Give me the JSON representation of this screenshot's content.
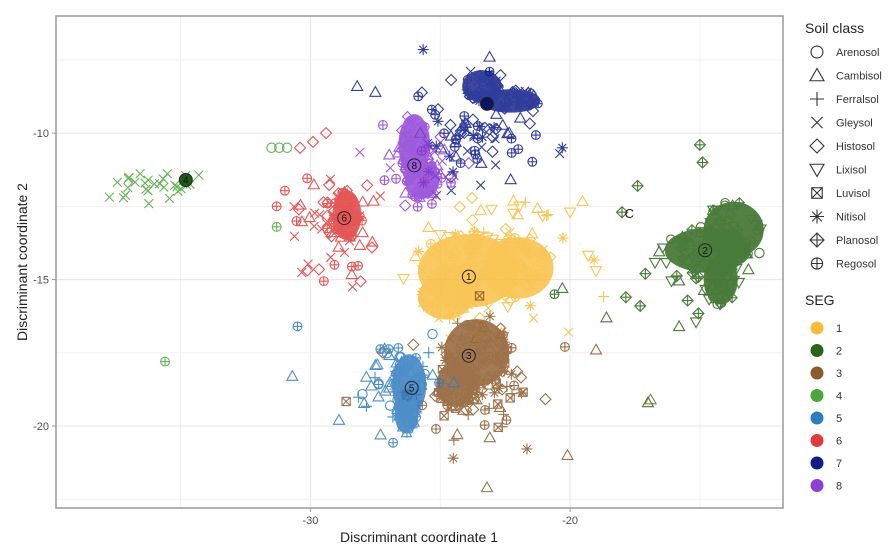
{
  "chart_data": {
    "type": "scatter",
    "title": "",
    "xlabel": "Discriminant coordinate 1",
    "ylabel": "Discriminant coordinate 2",
    "xlim": [
      -39.8,
      -11.8
    ],
    "ylim": [
      -22.8,
      -6.0
    ],
    "xticks": [
      -30,
      -20
    ],
    "xtick_labels": [
      "-30",
      "-20"
    ],
    "x_minor_gridlines": [
      -35,
      -25,
      -15
    ],
    "yticks": [
      -10,
      -15,
      -20
    ],
    "ytick_labels": [
      "-10",
      "-15",
      "-20"
    ],
    "y_minor_gridlines": [
      -7.5,
      -12.5,
      -17.5,
      -22.5
    ],
    "grid": true,
    "annotation": {
      "text": "C",
      "x": -17.9,
      "y": -12.9
    },
    "legend_shape": {
      "title": "Soil class",
      "position": "right",
      "entries": [
        {
          "name": "Arenosol",
          "shape": "circle"
        },
        {
          "name": "Cambisol",
          "shape": "triangle-up"
        },
        {
          "name": "Ferralsol",
          "shape": "plus"
        },
        {
          "name": "Gleysol",
          "shape": "cross"
        },
        {
          "name": "Histosol",
          "shape": "diamond"
        },
        {
          "name": "Lixisol",
          "shape": "triangle-down"
        },
        {
          "name": "Luvisol",
          "shape": "square-cross"
        },
        {
          "name": "Nitisol",
          "shape": "asterisk"
        },
        {
          "name": "Planosol",
          "shape": "diamond-plus"
        },
        {
          "name": "Regosol",
          "shape": "circle-plus"
        }
      ]
    },
    "legend_color": {
      "title": "SEG",
      "position": "right",
      "entries": [
        {
          "name": "1",
          "color": "#F9BC3A"
        },
        {
          "name": "2",
          "color": "#2A6418"
        },
        {
          "name": "3",
          "color": "#8C5A2B"
        },
        {
          "name": "4",
          "color": "#4DA63A"
        },
        {
          "name": "5",
          "color": "#2F7BC0"
        },
        {
          "name": "6",
          "color": "#E03A3A"
        },
        {
          "name": "7",
          "color": "#0E1C8A"
        },
        {
          "name": "8",
          "color": "#8E3FD6"
        }
      ]
    },
    "centroids": [
      {
        "seg": "1",
        "x": -23.9,
        "y": -14.9
      },
      {
        "seg": "2",
        "x": -14.8,
        "y": -14.0
      },
      {
        "seg": "3",
        "x": -23.9,
        "y": -17.6
      },
      {
        "seg": "4",
        "x": -34.8,
        "y": -11.6
      },
      {
        "seg": "5",
        "x": -26.1,
        "y": -18.7
      },
      {
        "seg": "6",
        "x": -28.7,
        "y": -12.9
      },
      {
        "seg": "7",
        "x": -23.2,
        "y": -9.0
      },
      {
        "seg": "8",
        "x": -26.0,
        "y": -11.1
      }
    ],
    "clusters": [
      {
        "seg": "1",
        "dense": [
          {
            "x": -23.9,
            "y": -14.7,
            "rx": 1.9,
            "ry": 1.2
          },
          {
            "x": -22.0,
            "y": -14.6,
            "rx": 1.3,
            "ry": 1.0
          },
          {
            "x": -24.8,
            "y": -15.6,
            "rx": 1.0,
            "ry": 0.7
          }
        ],
        "scatter": {
          "cx": -23.2,
          "cy": -14.4,
          "sx": 2.6,
          "sy": 1.8,
          "n": 120,
          "shapes": [
            "diamond",
            "triangle-down",
            "triangle-up",
            "circle-plus",
            "asterisk",
            "plus",
            "cross"
          ]
        }
      },
      {
        "seg": "2",
        "dense": [
          {
            "x": -14.7,
            "y": -14.0,
            "rx": 1.6,
            "ry": 0.7
          },
          {
            "x": -13.7,
            "y": -13.3,
            "rx": 1.1,
            "ry": 0.9
          },
          {
            "x": -14.2,
            "y": -15.0,
            "rx": 0.6,
            "ry": 0.8
          }
        ],
        "scatter": {
          "cx": -14.8,
          "cy": -14.4,
          "sx": 1.5,
          "sy": 1.3,
          "n": 60,
          "shapes": [
            "diamond-plus",
            "triangle-down",
            "circle",
            "triangle-up"
          ]
        }
      },
      {
        "seg": "3",
        "dense": [
          {
            "x": -23.6,
            "y": -17.5,
            "rx": 1.2,
            "ry": 1.1
          },
          {
            "x": -24.4,
            "y": -18.6,
            "rx": 0.7,
            "ry": 0.7
          }
        ],
        "scatter": {
          "cx": -23.8,
          "cy": -18.4,
          "sx": 2.0,
          "sy": 1.5,
          "n": 110,
          "shapes": [
            "diamond",
            "triangle-up",
            "asterisk",
            "circle-plus",
            "square-cross",
            "plus"
          ]
        }
      },
      {
        "seg": "4",
        "dense": [],
        "scatter": {
          "cx": -36.0,
          "cy": -11.9,
          "sx": 1.7,
          "sy": 0.5,
          "n": 28,
          "shapes": [
            "cross"
          ]
        }
      },
      {
        "seg": "5",
        "dense": [
          {
            "x": -26.2,
            "y": -18.6,
            "rx": 0.6,
            "ry": 1.0
          },
          {
            "x": -26.3,
            "y": -19.6,
            "rx": 0.4,
            "ry": 0.6
          }
        ],
        "scatter": {
          "cx": -26.8,
          "cy": -18.3,
          "sx": 1.4,
          "sy": 1.3,
          "n": 55,
          "shapes": [
            "plus",
            "circle",
            "triangle-up",
            "circle-plus"
          ]
        }
      },
      {
        "seg": "6",
        "dense": [
          {
            "x": -28.6,
            "y": -12.8,
            "rx": 0.5,
            "ry": 0.8
          }
        ],
        "scatter": {
          "cx": -29.1,
          "cy": -13.2,
          "sx": 1.4,
          "sy": 1.7,
          "n": 70,
          "shapes": [
            "diamond",
            "triangle-up",
            "circle-plus",
            "cross"
          ]
        }
      },
      {
        "seg": "7",
        "dense": [
          {
            "x": -23.4,
            "y": -8.4,
            "rx": 0.7,
            "ry": 0.5
          },
          {
            "x": -22.3,
            "y": -8.9,
            "rx": 1.1,
            "ry": 0.35
          }
        ],
        "scatter": {
          "cx": -23.9,
          "cy": -10.1,
          "sx": 1.9,
          "sy": 1.4,
          "n": 80,
          "shapes": [
            "diamond",
            "asterisk",
            "cross",
            "circle-plus",
            "triangle-up"
          ]
        }
      },
      {
        "seg": "8",
        "dense": [
          {
            "x": -26.0,
            "y": -10.4,
            "rx": 0.55,
            "ry": 1.0
          },
          {
            "x": -25.7,
            "y": -11.6,
            "rx": 0.6,
            "ry": 0.6
          }
        ],
        "scatter": {
          "cx": -25.7,
          "cy": -11.2,
          "sx": 1.2,
          "sy": 1.0,
          "n": 60,
          "shapes": [
            "circle-plus",
            "triangle-up",
            "diamond",
            "cross"
          ]
        }
      }
    ],
    "extra_points": [
      {
        "seg": "4",
        "shape": "circle-plus",
        "x": -35.6,
        "y": -17.8
      },
      {
        "seg": "4",
        "shape": "circle-plus",
        "x": -31.3,
        "y": -13.2
      },
      {
        "seg": "4",
        "shape": "circle",
        "x": -31.5,
        "y": -10.5
      },
      {
        "seg": "4",
        "shape": "circle",
        "x": -31.2,
        "y": -10.5
      },
      {
        "seg": "4",
        "shape": "circle",
        "x": -30.9,
        "y": -10.5
      },
      {
        "seg": "6",
        "shape": "circle-plus",
        "x": -31.3,
        "y": -12.5
      },
      {
        "seg": "6",
        "shape": "diamond",
        "x": -30.4,
        "y": -10.5
      },
      {
        "seg": "6",
        "shape": "diamond",
        "x": -29.9,
        "y": -10.3
      },
      {
        "seg": "6",
        "shape": "diamond",
        "x": -29.4,
        "y": -10.0
      },
      {
        "seg": "5",
        "shape": "circle-plus",
        "x": -30.5,
        "y": -16.6
      },
      {
        "seg": "5",
        "shape": "triangle-up",
        "x": -30.7,
        "y": -18.3
      },
      {
        "seg": "5",
        "shape": "triangle-up",
        "x": -28.9,
        "y": -19.8
      },
      {
        "seg": "5",
        "shape": "triangle-up",
        "x": -27.3,
        "y": -20.3
      },
      {
        "seg": "3",
        "shape": "triangle-up",
        "x": -23.2,
        "y": -22.1
      },
      {
        "seg": "3",
        "shape": "triangle-up",
        "x": -19.0,
        "y": -17.4
      },
      {
        "seg": "3",
        "shape": "triangle-up",
        "x": -16.9,
        "y": -19.1
      },
      {
        "seg": "3",
        "shape": "circle-plus",
        "x": -20.2,
        "y": -17.3
      },
      {
        "seg": "3",
        "shape": "triangle-up",
        "x": -20.1,
        "y": -21.0
      },
      {
        "seg": "2",
        "shape": "diamond-plus",
        "x": -17.4,
        "y": -11.8
      },
      {
        "seg": "2",
        "shape": "diamond-plus",
        "x": -18.0,
        "y": -12.7
      },
      {
        "seg": "2",
        "shape": "diamond-plus",
        "x": -15.0,
        "y": -10.4
      },
      {
        "seg": "2",
        "shape": "diamond-plus",
        "x": -14.9,
        "y": -11.0
      },
      {
        "seg": "2",
        "shape": "diamond-plus",
        "x": -17.1,
        "y": -14.8
      },
      {
        "seg": "2",
        "shape": "diamond-plus",
        "x": -17.3,
        "y": -15.9
      },
      {
        "seg": "2",
        "shape": "triangle-up",
        "x": -18.6,
        "y": -16.3
      },
      {
        "seg": "2",
        "shape": "triangle-up",
        "x": -15.8,
        "y": -16.6
      },
      {
        "seg": "2",
        "shape": "triangle-up",
        "x": -17.0,
        "y": -19.2
      },
      {
        "seg": "2",
        "shape": "circle-plus",
        "x": -20.6,
        "y": -15.5
      },
      {
        "seg": "2",
        "shape": "triangle-up",
        "x": -20.3,
        "y": -15.3
      },
      {
        "seg": "1",
        "shape": "triangle-down",
        "x": -20.0,
        "y": -12.7
      },
      {
        "seg": "1",
        "shape": "triangle-down",
        "x": -19.0,
        "y": -14.7
      },
      {
        "seg": "7",
        "shape": "triangle-up",
        "x": -23.1,
        "y": -7.4
      },
      {
        "seg": "7",
        "shape": "circle-plus",
        "x": -23.1,
        "y": -7.9
      },
      {
        "seg": "7",
        "shape": "cross",
        "x": -20.4,
        "y": -10.7
      },
      {
        "seg": "7",
        "shape": "asterisk",
        "x": -20.3,
        "y": -10.5
      },
      {
        "seg": "7",
        "shape": "triangle-up",
        "x": -27.5,
        "y": -8.6
      },
      {
        "seg": "7",
        "shape": "triangle-up",
        "x": -28.2,
        "y": -8.4
      }
    ]
  }
}
